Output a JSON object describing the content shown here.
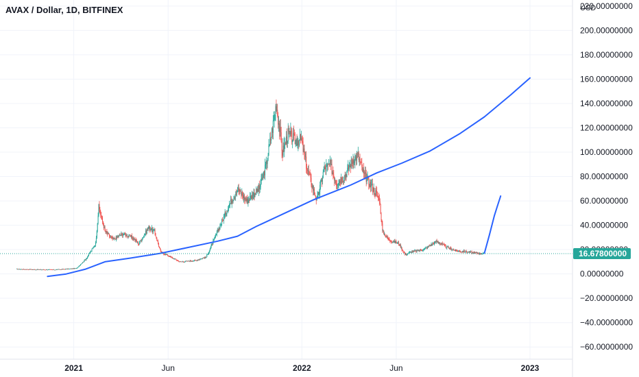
{
  "header": {
    "title": "AVAX / Dollar, 1D, BITFINEX",
    "currency": "USD"
  },
  "price_badge": {
    "value": "16.67800000",
    "color": "#26a69a"
  },
  "colors": {
    "up": "#26a69a",
    "down": "#ef5350",
    "drawing": "#2962ff",
    "grid": "#f0f3fa",
    "last_price_line": "#26a69a"
  },
  "chart_data": {
    "type": "line",
    "instrument": "AVAX / Dollar",
    "interval": "1D",
    "exchange": "BITFINEX",
    "y_axis": {
      "range": [
        -70,
        225
      ],
      "ticks": [
        220,
        200,
        180,
        160,
        140,
        120,
        100,
        80,
        60,
        40,
        20,
        0,
        -20,
        -40,
        -60
      ],
      "tick_labels": [
        "220.00000000",
        "200.00000000",
        "180.00000000",
        "160.00000000",
        "140.00000000",
        "120.00000000",
        "100.00000000",
        "80.00000000",
        "60.00000000",
        "40.00000000",
        "20.00000000",
        "0.00000000",
        "−20.00000000",
        "−40.00000000",
        "−60.00000000"
      ]
    },
    "x_axis": {
      "range": [
        "2020-09-05",
        "2023-03-10"
      ],
      "labels": [
        {
          "date": "2021-01-01",
          "text": "2021",
          "major": true
        },
        {
          "date": "2021-06-01",
          "text": "Jun",
          "major": false
        },
        {
          "date": "2022-01-01",
          "text": "2022",
          "major": true
        },
        {
          "date": "2022-06-01",
          "text": "Jun",
          "major": false
        },
        {
          "date": "2023-01-01",
          "text": "2023",
          "major": true
        }
      ]
    },
    "grid": true,
    "last_price": 16.678,
    "series": [
      {
        "kind": "candles",
        "points": [
          {
            "x": "2020-10-01",
            "y": 4.0
          },
          {
            "x": "2020-11-01",
            "y": 3.6
          },
          {
            "x": "2020-12-01",
            "y": 3.5
          },
          {
            "x": "2021-01-05",
            "y": 4.5
          },
          {
            "x": "2021-01-20",
            "y": 12.0
          },
          {
            "x": "2021-02-05",
            "y": 25.0
          },
          {
            "x": "2021-02-10",
            "y": 55.0
          },
          {
            "x": "2021-02-20",
            "y": 35.0
          },
          {
            "x": "2021-03-05",
            "y": 28.0
          },
          {
            "x": "2021-03-20",
            "y": 33.0
          },
          {
            "x": "2021-04-05",
            "y": 30.0
          },
          {
            "x": "2021-04-15",
            "y": 25.0
          },
          {
            "x": "2021-05-01",
            "y": 38.0
          },
          {
            "x": "2021-05-10",
            "y": 35.0
          },
          {
            "x": "2021-05-20",
            "y": 18.0
          },
          {
            "x": "2021-06-01",
            "y": 15.0
          },
          {
            "x": "2021-06-20",
            "y": 10.0
          },
          {
            "x": "2021-07-15",
            "y": 11.0
          },
          {
            "x": "2021-08-01",
            "y": 14.0
          },
          {
            "x": "2021-08-15",
            "y": 30.0
          },
          {
            "x": "2021-09-05",
            "y": 55.0
          },
          {
            "x": "2021-09-20",
            "y": 70.0
          },
          {
            "x": "2021-10-05",
            "y": 60.0
          },
          {
            "x": "2021-10-25",
            "y": 70.0
          },
          {
            "x": "2021-11-05",
            "y": 90.0
          },
          {
            "x": "2021-11-15",
            "y": 120.0
          },
          {
            "x": "2021-11-21",
            "y": 140.0
          },
          {
            "x": "2021-12-01",
            "y": 100.0
          },
          {
            "x": "2021-12-10",
            "y": 115.0
          },
          {
            "x": "2021-12-20",
            "y": 110.0
          },
          {
            "x": "2021-12-31",
            "y": 110.0
          },
          {
            "x": "2022-01-10",
            "y": 85.0
          },
          {
            "x": "2022-01-25",
            "y": 60.0
          },
          {
            "x": "2022-02-05",
            "y": 85.0
          },
          {
            "x": "2022-02-15",
            "y": 90.0
          },
          {
            "x": "2022-02-25",
            "y": 75.0
          },
          {
            "x": "2022-03-10",
            "y": 80.0
          },
          {
            "x": "2022-03-25",
            "y": 95.0
          },
          {
            "x": "2022-04-01",
            "y": 97.0
          },
          {
            "x": "2022-04-10",
            "y": 82.0
          },
          {
            "x": "2022-04-25",
            "y": 70.0
          },
          {
            "x": "2022-05-05",
            "y": 62.0
          },
          {
            "x": "2022-05-10",
            "y": 35.0
          },
          {
            "x": "2022-05-20",
            "y": 28.0
          },
          {
            "x": "2022-06-05",
            "y": 25.0
          },
          {
            "x": "2022-06-15",
            "y": 16.0
          },
          {
            "x": "2022-06-25",
            "y": 18.0
          },
          {
            "x": "2022-07-15",
            "y": 20.0
          },
          {
            "x": "2022-08-05",
            "y": 27.0
          },
          {
            "x": "2022-08-20",
            "y": 22.0
          },
          {
            "x": "2022-09-05",
            "y": 19.0
          },
          {
            "x": "2022-09-25",
            "y": 18.0
          },
          {
            "x": "2022-10-10",
            "y": 17.0
          },
          {
            "x": "2022-10-20",
            "y": 16.7
          }
        ]
      },
      {
        "kind": "drawn-line",
        "points": [
          {
            "x": "2020-11-20",
            "y": -2.0
          },
          {
            "x": "2020-12-20",
            "y": 0.0
          },
          {
            "x": "2021-01-20",
            "y": 4.0
          },
          {
            "x": "2021-02-20",
            "y": 10.0
          },
          {
            "x": "2021-04-01",
            "y": 13.0
          },
          {
            "x": "2021-05-20",
            "y": 17.0
          },
          {
            "x": "2021-07-05",
            "y": 22.0
          },
          {
            "x": "2021-08-20",
            "y": 27.0
          },
          {
            "x": "2021-09-20",
            "y": 31.0
          },
          {
            "x": "2021-10-20",
            "y": 39.0
          },
          {
            "x": "2021-12-05",
            "y": 50.0
          },
          {
            "x": "2022-01-20",
            "y": 61.0
          },
          {
            "x": "2022-03-20",
            "y": 73.0
          },
          {
            "x": "2022-05-01",
            "y": 83.0
          },
          {
            "x": "2022-06-10",
            "y": 91.0
          },
          {
            "x": "2022-07-25",
            "y": 101.0
          },
          {
            "x": "2022-09-10",
            "y": 115.0
          },
          {
            "x": "2022-10-20",
            "y": 129.0
          },
          {
            "x": "2022-12-01",
            "y": 147.0
          },
          {
            "x": "2023-01-01",
            "y": 161.0
          }
        ]
      },
      {
        "kind": "drawn-line",
        "points": [
          {
            "x": "2022-10-20",
            "y": 17.0
          },
          {
            "x": "2022-10-28",
            "y": 32.0
          },
          {
            "x": "2022-11-05",
            "y": 48.0
          },
          {
            "x": "2022-11-10",
            "y": 56.0
          },
          {
            "x": "2022-11-15",
            "y": 64.0
          }
        ]
      }
    ]
  }
}
